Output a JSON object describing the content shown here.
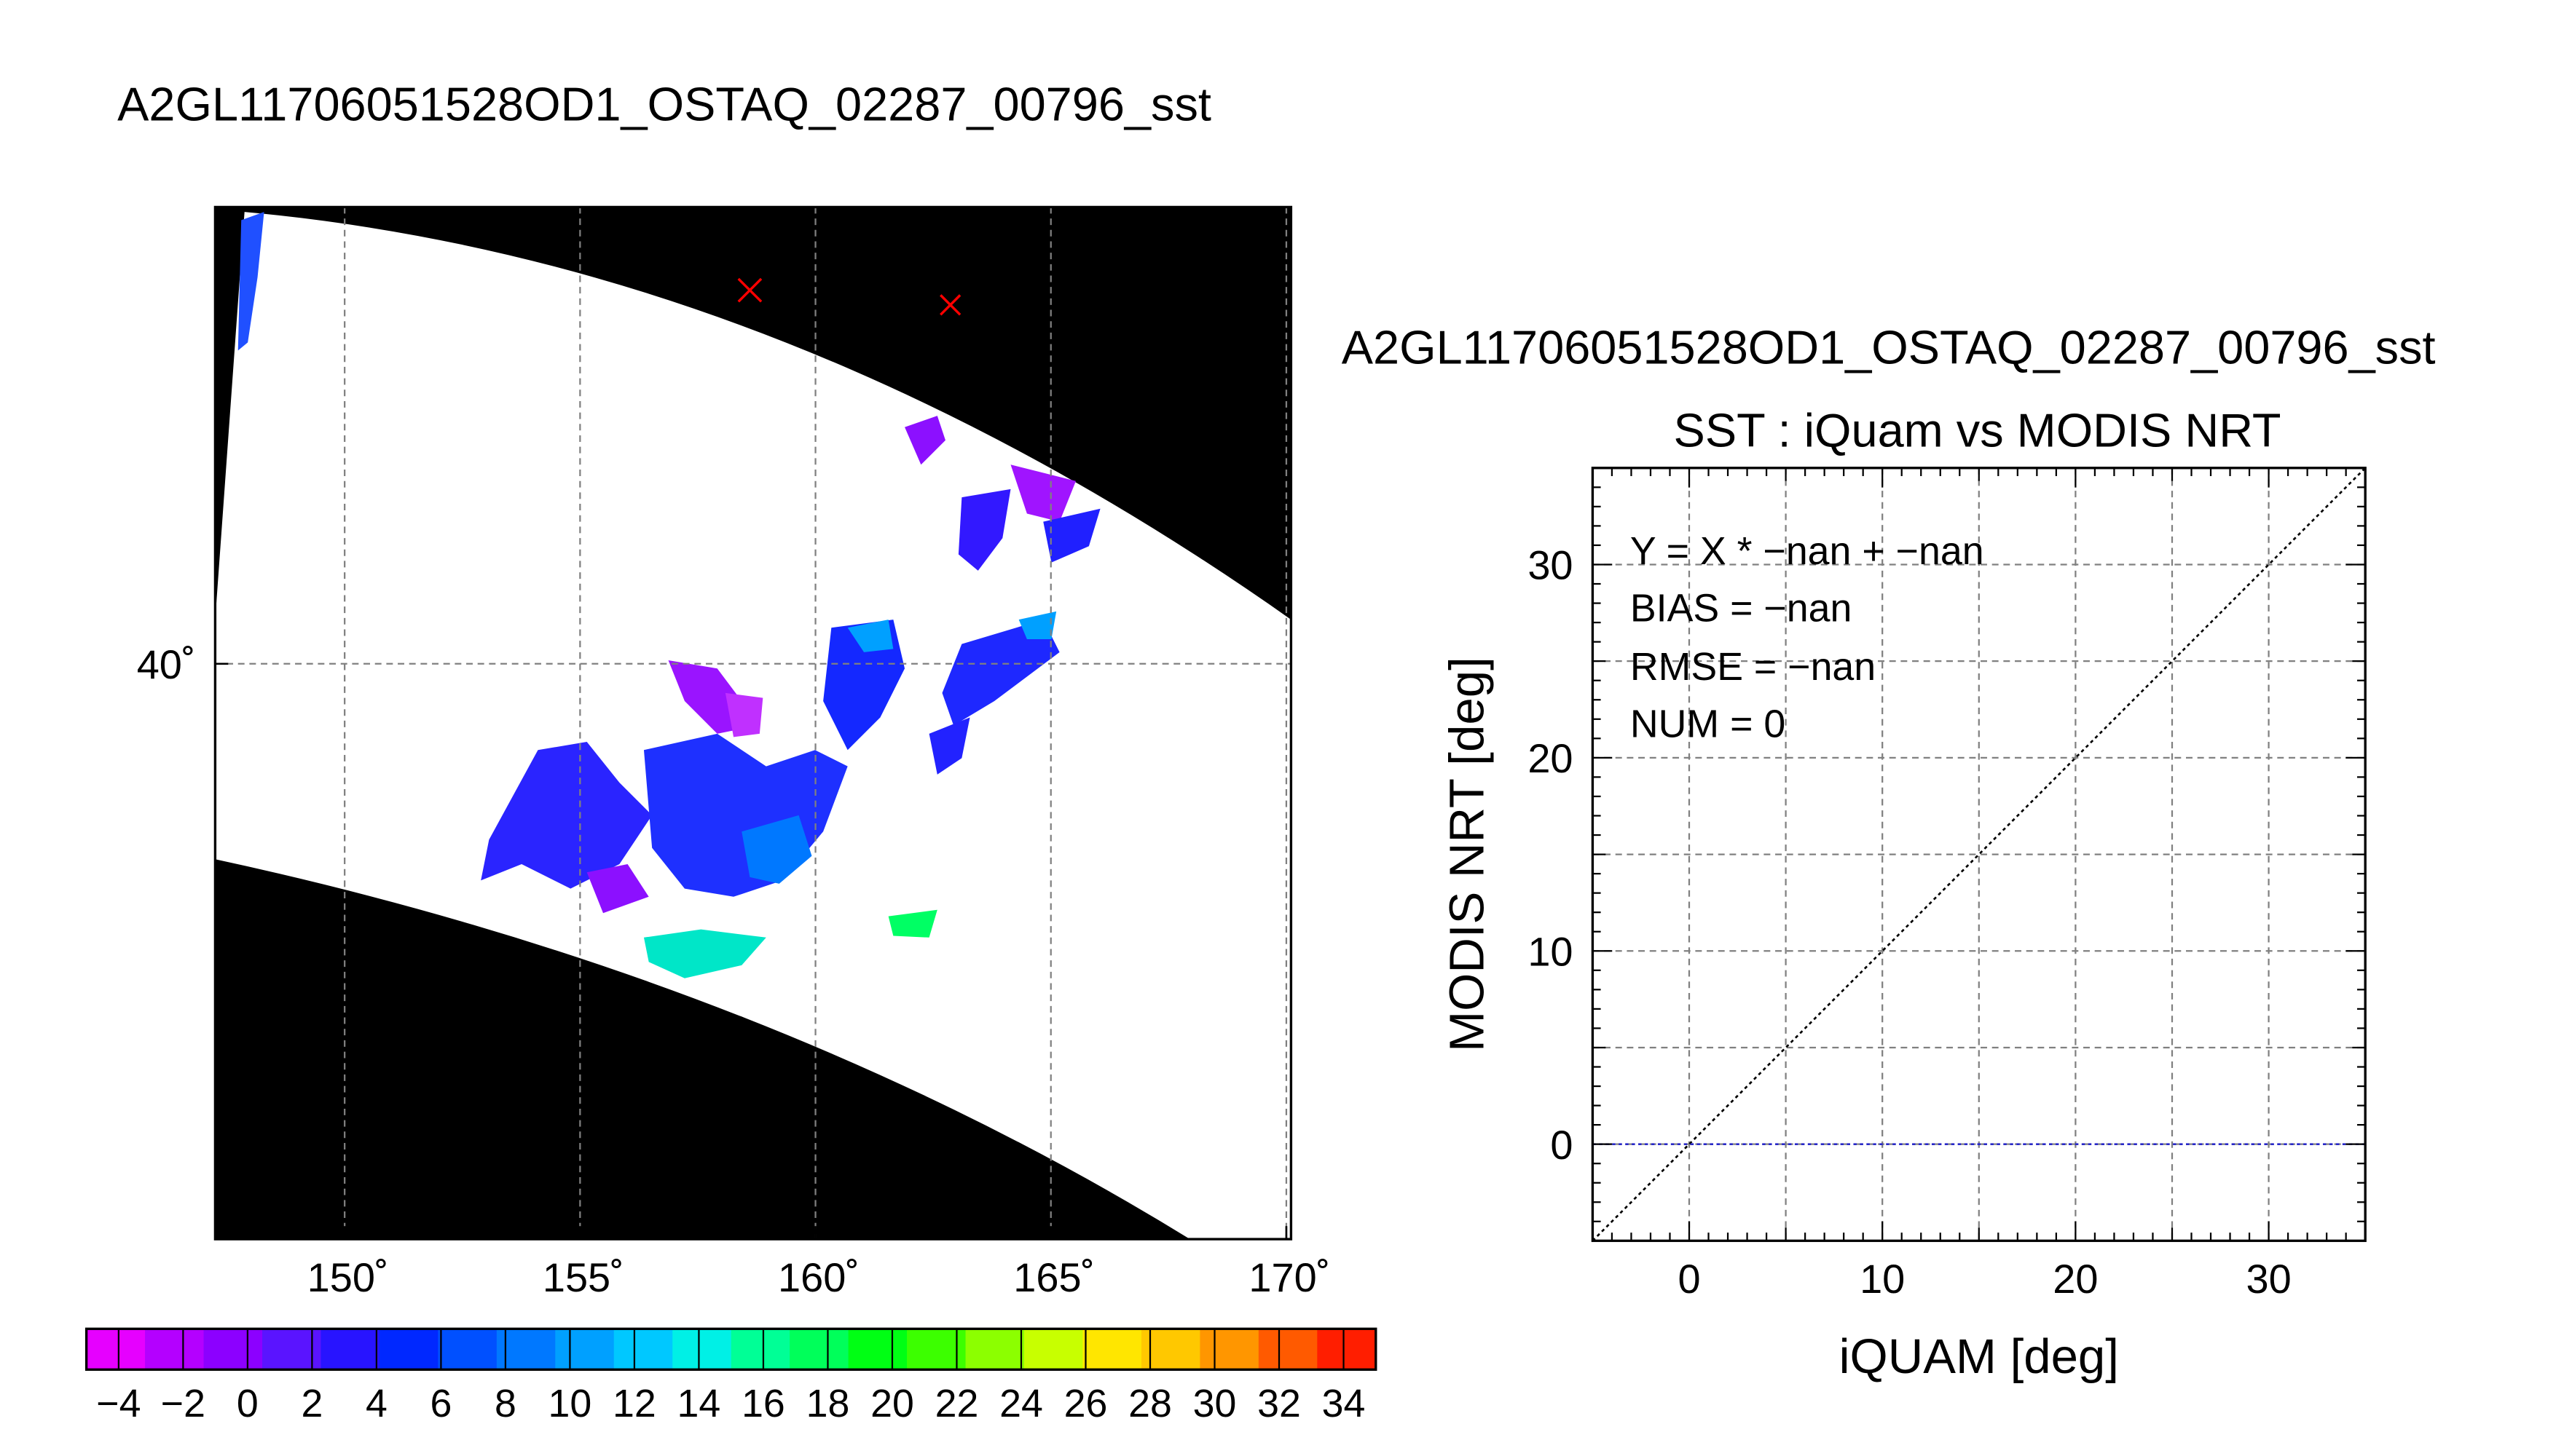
{
  "map_panel": {
    "title": "A2GL11706051528OD1_OSTAQ_02287_00796_sst",
    "lon_ticks": [
      150,
      155,
      160,
      165,
      170
    ],
    "lat_ticks": [
      40
    ],
    "lon_range": [
      147.25,
      170.1
    ],
    "lat_range": [
      30.3,
      47.7
    ],
    "colorbar": {
      "min": -5,
      "max": 35,
      "step": 2,
      "tick_labels": [
        "−4",
        "−2",
        "0",
        "2",
        "4",
        "6",
        "8",
        "10",
        "12",
        "14",
        "16",
        "18",
        "20",
        "22",
        "24",
        "26",
        "28",
        "30",
        "32",
        "34"
      ],
      "colors": [
        "#e600ff",
        "#b400ff",
        "#8c00ff",
        "#5a14ff",
        "#2814ff",
        "#0028ff",
        "#0050ff",
        "#0078ff",
        "#00a0ff",
        "#00c8ff",
        "#00f0e6",
        "#00ff96",
        "#00ff5a",
        "#00ff14",
        "#3cff00",
        "#8cff00",
        "#c8ff00",
        "#ffe600",
        "#ffc800",
        "#ff9600",
        "#ff5a00",
        "#ff1e00"
      ]
    },
    "buoy_markers_color": "#ff0000"
  },
  "chart_data": {
    "type": "scatter",
    "title": "A2GL11706051528OD1_OSTAQ_02287_00796_sst",
    "subtitle": "SST : iQuam vs MODIS NRT",
    "xlabel": "iQUAM [deg]",
    "ylabel": "MODIS NRT [deg]",
    "xlim": [
      -5,
      35
    ],
    "ylim": [
      -5,
      35
    ],
    "xticks": [
      0,
      10,
      20,
      30
    ],
    "yticks": [
      0,
      10,
      20,
      30
    ],
    "grid": true,
    "points": [],
    "reference_lines": [
      {
        "name": "1:1",
        "from": [
          -5,
          -5
        ],
        "to": [
          35,
          35
        ],
        "color": "#000000",
        "style": "dotted"
      },
      {
        "name": "zero",
        "from": [
          -5,
          0
        ],
        "to": [
          35,
          0
        ],
        "color": "#2828c8",
        "style": "dotted"
      }
    ],
    "stats": {
      "fit": "Y = X * −nan + −nan",
      "bias": "BIAS = −nan",
      "rmse": "RMSE = −nan",
      "num": "NUM = 0"
    }
  }
}
